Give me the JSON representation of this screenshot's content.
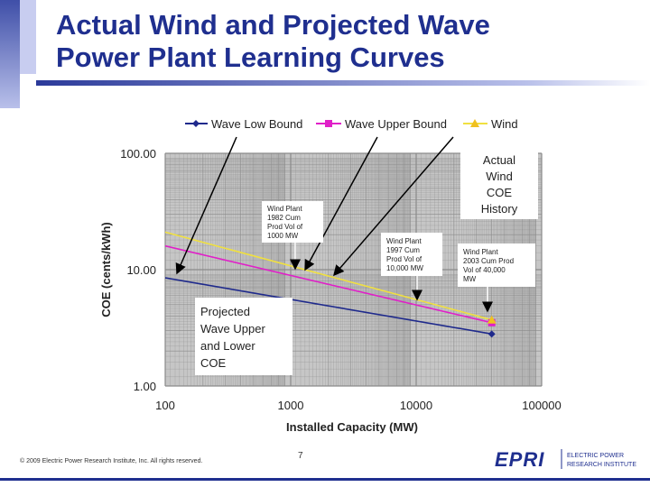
{
  "slide": {
    "title_line1": "Actual Wind and Projected Wave",
    "title_line2": "Power Plant Learning Curves",
    "copyright": "© 2009 Electric Power Research Institute, Inc. All rights reserved.",
    "page_number": "7",
    "logo_mark": "EPRI",
    "logo_line1": "ELECTRIC POWER",
    "logo_line2": "RESEARCH INSTITUTE"
  },
  "annotations": {
    "actual_wind": [
      "Actual",
      "Wind",
      "COE",
      "History"
    ],
    "projected_wave": [
      "Projected",
      "Wave Upper",
      "and Lower",
      "COE"
    ],
    "wind_1982": [
      "Wind Plant",
      "1982 Cum",
      "Prod Vol of",
      "1000 MW"
    ],
    "wind_1997": [
      "Wind Plant",
      "1997 Cum",
      "Prod Vol of",
      "10,000 MW"
    ],
    "wind_2003": [
      "Wind Plant",
      "2003 Cum Prod",
      "Vol of 40,000",
      "MW"
    ]
  },
  "colors": {
    "wave_low": "#1f2a8c",
    "wave_upper": "#e020c8",
    "wind": "#f0e040",
    "wind_marker": "#f0c020",
    "grid": "#8a8a8a",
    "plot_bg": "#c6c6c6",
    "title": "#1f2f8f"
  },
  "chart_data": {
    "type": "line",
    "xlabel": "Installed Capacity (MW)",
    "ylabel": "COE (cents/kWh)",
    "x_scale": "log",
    "y_scale": "log",
    "xlim": [
      100,
      100000
    ],
    "ylim": [
      1,
      100
    ],
    "x_ticks": [
      "100",
      "1000",
      "10000",
      "100000"
    ],
    "y_ticks": [
      "100.00",
      "10.00",
      "1.00"
    ],
    "grid": true,
    "legend_position": "top",
    "series": [
      {
        "name": "Wave Low Bound",
        "x": [
          100,
          40000
        ],
        "y": [
          8.5,
          2.8
        ],
        "marker_at": 40000
      },
      {
        "name": "Wave Upper Bound",
        "x": [
          100,
          40000
        ],
        "y": [
          16,
          3.5
        ],
        "marker_at": 40000
      },
      {
        "name": "Wind",
        "x": [
          100,
          40000
        ],
        "y": [
          21,
          3.7
        ],
        "marker_at": 40000
      }
    ]
  }
}
